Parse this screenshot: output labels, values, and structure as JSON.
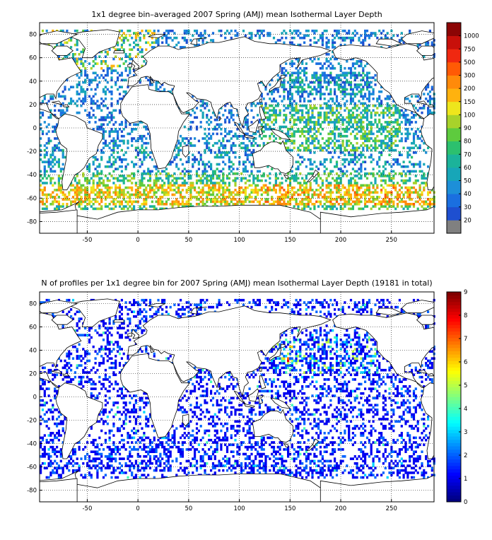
{
  "chart_data": [
    {
      "type": "heatmap",
      "title": "1x1 degree bin–averaged 2007 Spring (AMJ) mean Isothermal Layer Depth",
      "xlim": [
        -97,
        292
      ],
      "ylim": [
        -90,
        90
      ],
      "x_ticks": [
        -50,
        0,
        50,
        100,
        150,
        200,
        250
      ],
      "y_ticks": [
        80,
        60,
        40,
        20,
        0,
        -20,
        -40,
        -60,
        -80
      ],
      "grid": true,
      "colorbar": {
        "position": "right",
        "labels": [
          "20",
          "30",
          "40",
          "50",
          "60",
          "70",
          "80",
          "90",
          "100",
          "150",
          "200",
          "300",
          "500",
          "750",
          "1000"
        ],
        "colors": [
          "#808080",
          "#1e4fd0",
          "#1a6fe0",
          "#1d8fd8",
          "#17a6b8",
          "#1bb39a",
          "#2cc06e",
          "#5ecb3e",
          "#a8d22a",
          "#eee61c",
          "#ffb20e",
          "#ff8a0a",
          "#ff5a05",
          "#f02810",
          "#c8100a",
          "#8c0505"
        ]
      },
      "regions": [
        {
          "lon": [
            -60,
            10
          ],
          "lat": [
            -66,
            -48
          ],
          "value": "100"
        },
        {
          "lon": [
            100,
            290
          ],
          "lat": [
            -64,
            -40
          ],
          "value": "150"
        },
        {
          "lon": [
            -60,
            -30
          ],
          "lat": [
            52,
            72
          ],
          "value": "200"
        },
        {
          "lon": [
            130,
            250
          ],
          "lat": [
            -20,
            20
          ],
          "value": "80"
        },
        {
          "lon": [
            -90,
            290
          ],
          "lat": [
            -40,
            40
          ],
          "value": "40"
        }
      ]
    },
    {
      "type": "heatmap",
      "title": "N of profiles per 1x1 degree bin for 2007 Spring (AMJ) mean Isothermal Layer Depth  (19181 in total)",
      "xlim": [
        -97,
        292
      ],
      "ylim": [
        -90,
        90
      ],
      "x_ticks": [
        -50,
        0,
        50,
        100,
        150,
        200,
        250
      ],
      "y_ticks": [
        80,
        60,
        40,
        20,
        0,
        -20,
        -40,
        -60,
        -80
      ],
      "grid": true,
      "colorbar": {
        "position": "right",
        "labels": [
          "0",
          "1",
          "2",
          "3",
          "4",
          "5",
          "6",
          "7",
          "8",
          "9"
        ],
        "range": [
          0,
          9
        ]
      },
      "dominant_value": 1,
      "hotspot": {
        "lon": [
          140,
          160
        ],
        "lat": [
          30,
          45
        ],
        "value_range": [
          3,
          8
        ]
      }
    }
  ]
}
